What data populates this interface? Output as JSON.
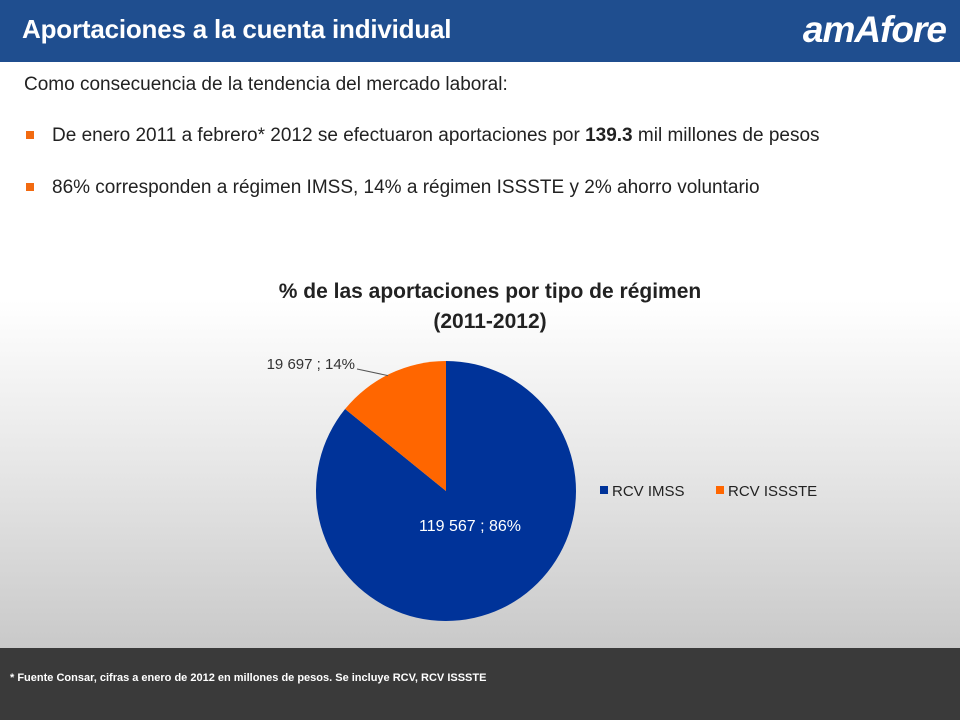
{
  "header": {
    "title": "Aportaciones a la cuenta individual",
    "logo_text": "amAfore",
    "background_color": "#1f4e8f"
  },
  "intro": "Como consecuencia de la tendencia del mercado laboral:",
  "bullets": [
    {
      "before": "De enero 2011 a febrero* 2012 se efectuaron aportaciones por ",
      "bold": "139.3",
      "after": " mil millones de pesos"
    },
    {
      "text": "86% corresponden a régimen IMSS, 14% a régimen ISSSTE y 2% ahorro voluntario"
    }
  ],
  "bullet_marker_color": "#f26a10",
  "chart_data": {
    "type": "pie",
    "title": "% de las aportaciones por tipo de régimen",
    "subtitle": "(2011-2012)",
    "categories": [
      "RCV IMSS",
      "RCV ISSSTE"
    ],
    "values": [
      119567,
      19697
    ],
    "percentages": [
      86,
      14
    ],
    "data_labels": [
      "119 567 ; 86%",
      "19 697 ; 14%"
    ],
    "colors": [
      "#003399",
      "#ff6600"
    ],
    "legend_position": "right"
  },
  "footer": {
    "note": "* Fuente Consar, cifras a enero de 2012 en millones de pesos. Se incluye RCV, RCV ISSSTE",
    "background_color": "#3a3a3a"
  }
}
